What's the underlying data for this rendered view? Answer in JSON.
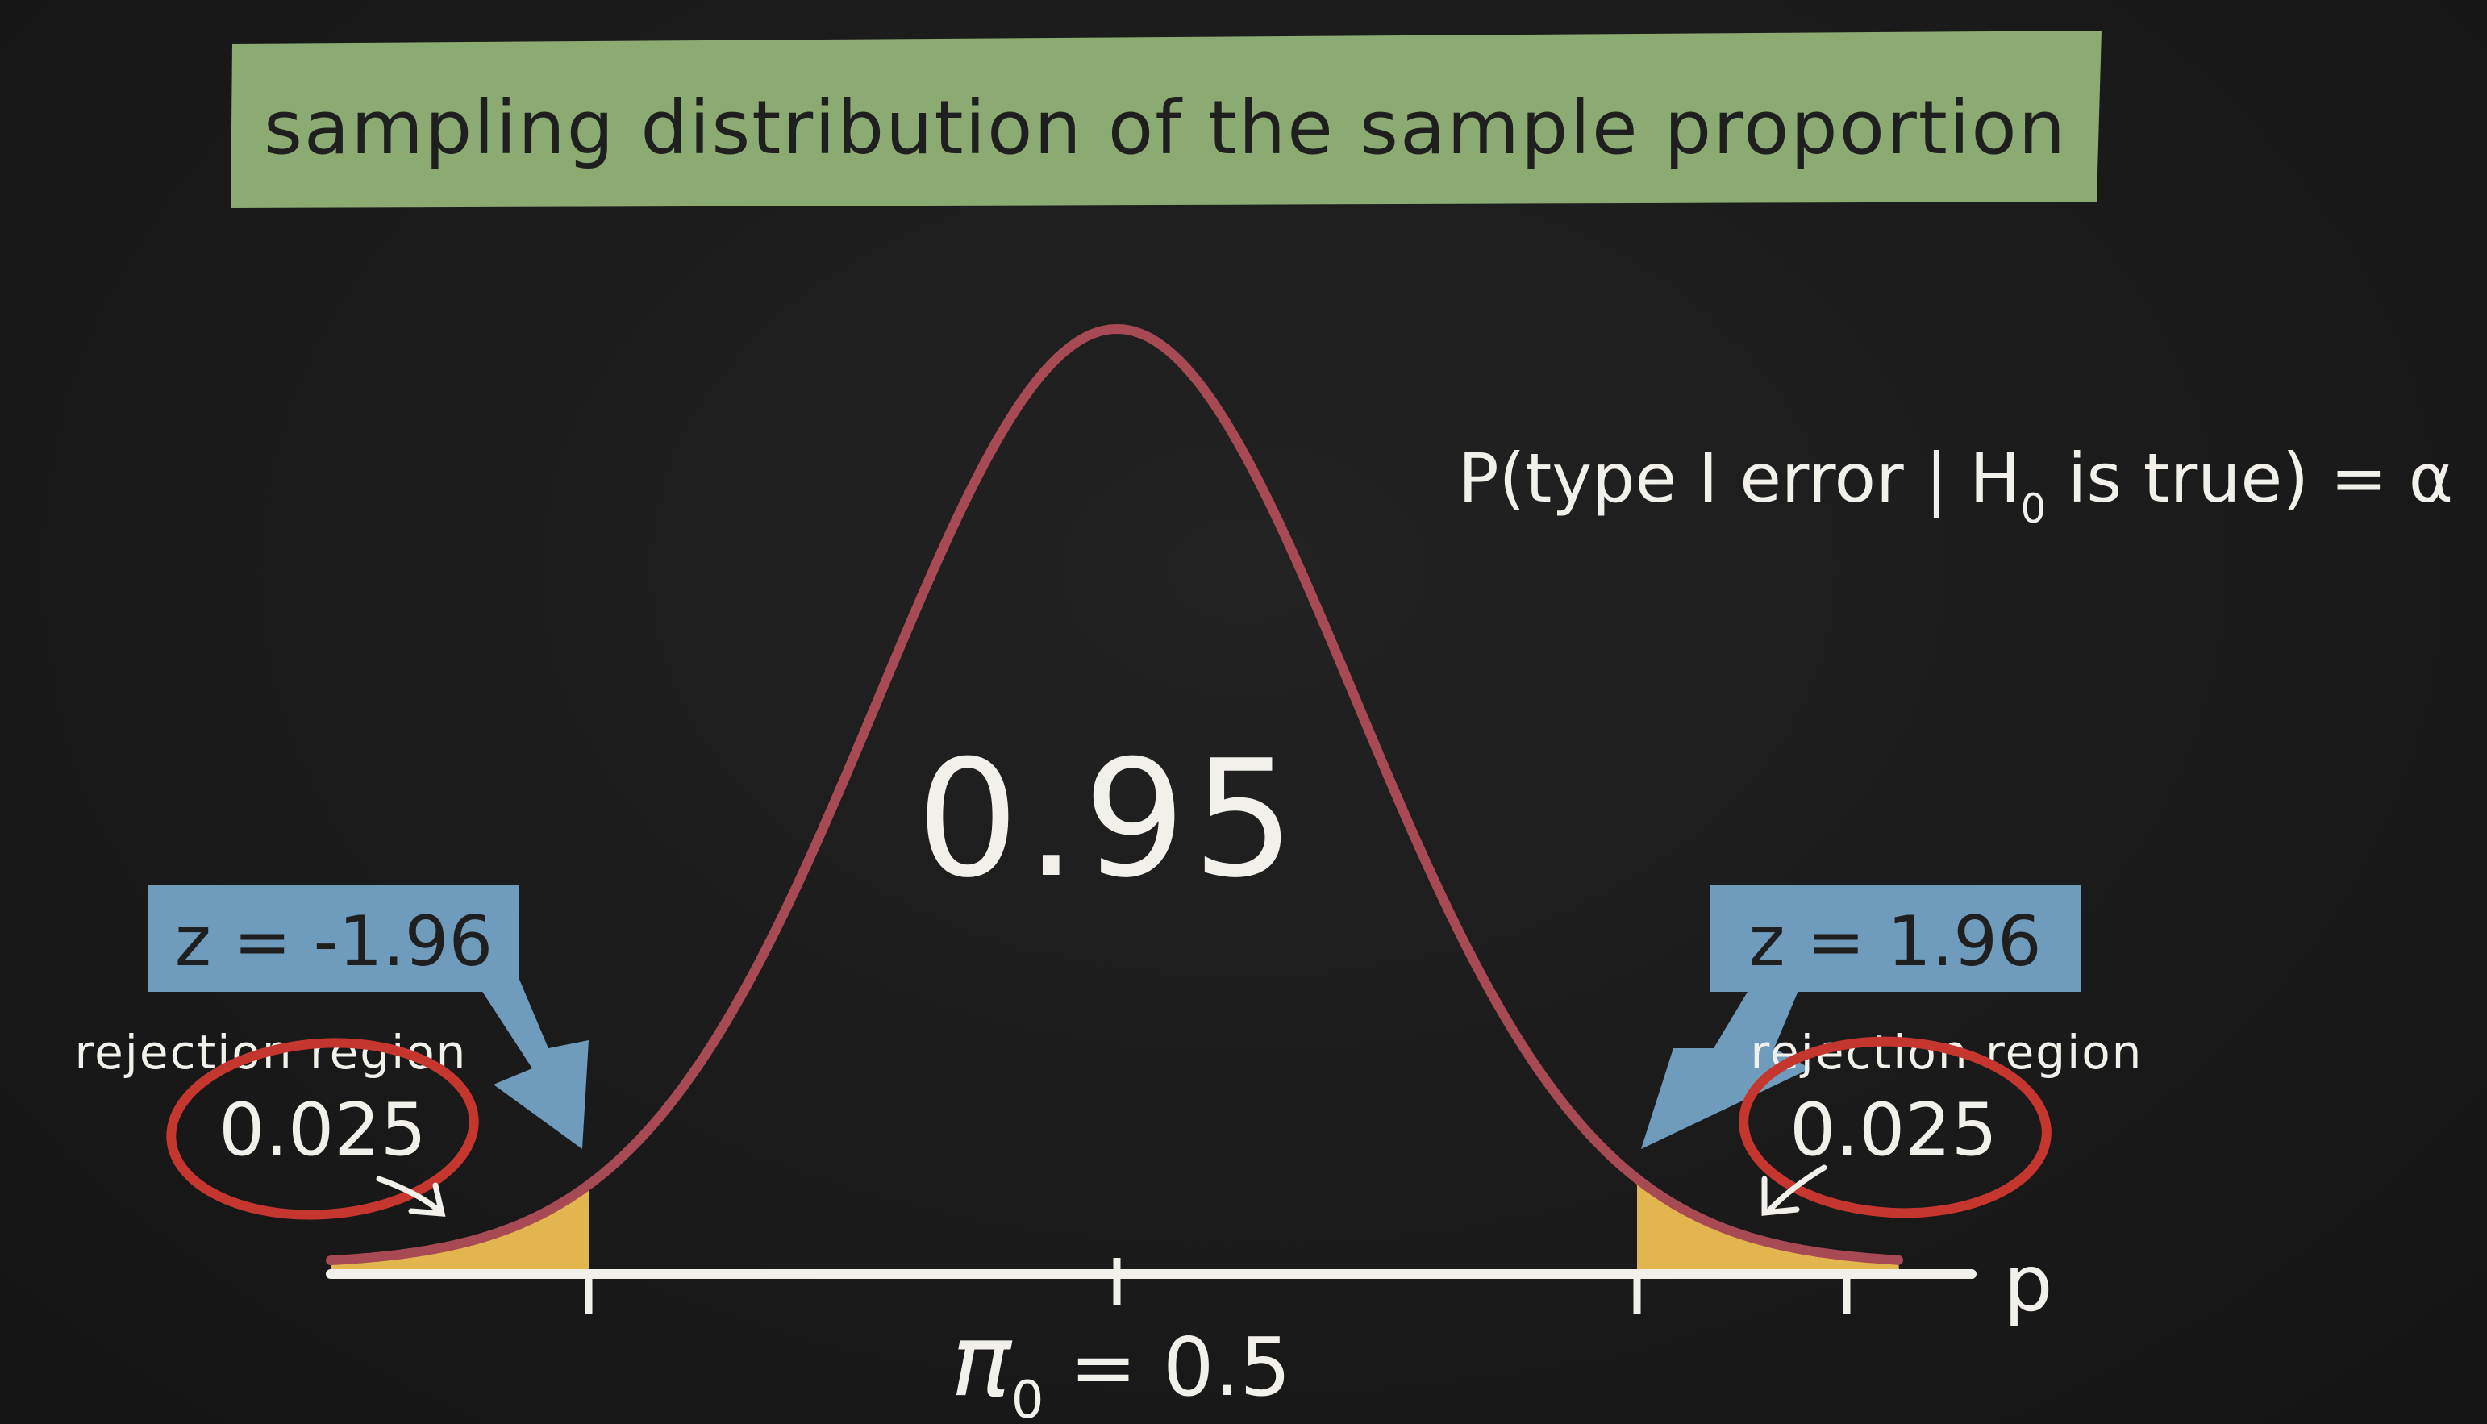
{
  "title": "sampling distribution of the sample proportion",
  "formula": {
    "prefix": "P(type I error | H",
    "subscript": "0",
    "suffix": " is true) = α"
  },
  "center_area": "0.95",
  "left_tail": {
    "z_label": "z = -1.96",
    "region_label": "rejection region",
    "area": "0.025"
  },
  "right_tail": {
    "z_label": "z = 1.96",
    "region_label": "rejection region",
    "area": "0.025"
  },
  "axis": {
    "variable": "p",
    "null_symbol": "π",
    "null_subscript": "0",
    "null_value": " = 0.5"
  },
  "colors": {
    "background": "#1b1b1b",
    "banner": "#8bab72",
    "curve": "#a84a54",
    "tail_fill": "#e2b54f",
    "callout": "#6f9bbc",
    "circle": "#c5362f",
    "chalk": "#f2f0ea"
  }
}
